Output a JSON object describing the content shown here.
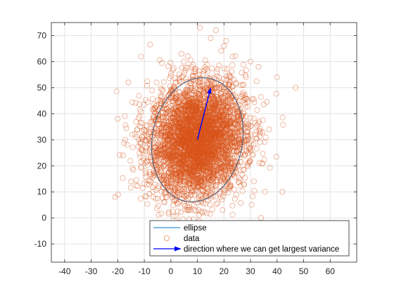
{
  "chart_data": {
    "type": "scatter",
    "title": "",
    "xlabel": "",
    "ylabel": "",
    "xlim": [
      -45,
      70
    ],
    "ylim": [
      -17,
      75
    ],
    "x_ticks": [
      -40,
      -30,
      -20,
      -10,
      0,
      10,
      20,
      30,
      40,
      50,
      60
    ],
    "y_ticks": [
      -10,
      0,
      10,
      20,
      30,
      40,
      50,
      60,
      70
    ],
    "grid": true,
    "legend_position": "bottom-center",
    "scatter_distribution": {
      "mean": [
        10,
        30
      ],
      "std": [
        9,
        11
      ],
      "count": 4000,
      "marker": "open-circle",
      "color": "#D95319"
    },
    "extreme_points": [
      {
        "x": 11,
        "y": 73
      },
      {
        "x": 17,
        "y": 72
      },
      {
        "x": 47,
        "y": 50
      },
      {
        "x": 40,
        "y": 54
      },
      {
        "x": -21,
        "y": 8
      },
      {
        "x": -20,
        "y": 38
      },
      {
        "x": 34,
        "y": 0
      },
      {
        "x": 42,
        "y": 10
      },
      {
        "x": 26,
        "y": -13
      },
      {
        "x": 15,
        "y": 69
      },
      {
        "x": 20,
        "y": 66
      },
      {
        "x": -16,
        "y": 52
      },
      {
        "x": 33,
        "y": 58
      },
      {
        "x": -15,
        "y": 14
      },
      {
        "x": 37,
        "y": 34
      },
      {
        "x": -18,
        "y": 24
      },
      {
        "x": 30,
        "y": 60
      },
      {
        "x": 4,
        "y": 63
      }
    ],
    "ellipse": {
      "center": [
        10,
        30
      ],
      "semi_major": 24,
      "semi_minor": 17,
      "angle_deg_from_x": 80,
      "color": "#4A5A78"
    },
    "arrow": {
      "from": [
        10,
        30
      ],
      "to": [
        15,
        50
      ],
      "color": "#0000FF"
    },
    "legend": [
      {
        "label": "ellipse",
        "marker": "line",
        "color": "#0072BD"
      },
      {
        "label": "data",
        "marker": "circle",
        "color": "#D95319"
      },
      {
        "label": "direction where we can get largest variance",
        "marker": "arrow",
        "color": "#0000FF"
      }
    ]
  }
}
